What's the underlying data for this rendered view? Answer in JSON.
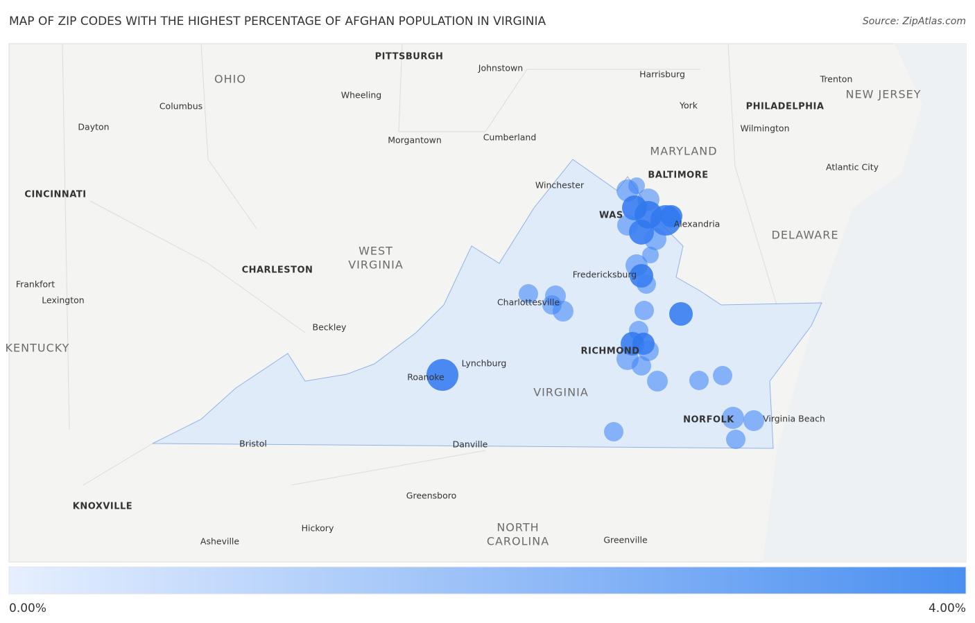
{
  "title": "MAP OF ZIP CODES WITH THE HIGHEST PERCENTAGE OF AFGHAN POPULATION IN VIRGINIA",
  "source": "Source: ZipAtlas.com",
  "map_labels": [
    "PITTSBURGH",
    "Johnstown",
    "OHIO",
    "Harrisburg",
    "Trenton",
    "NEW JERSEY",
    "Wheeling",
    "Columbus",
    "York",
    "PHILADELPHIA",
    "Dayton",
    "Wilmington",
    "Cumberland",
    "Morgantown",
    "MARYLAND",
    "BALTIMORE",
    "Atlantic City",
    "Winchester",
    "CINCINNATI",
    "WAS",
    "Alexandria",
    "DELAWARE",
    "WEST",
    "VIRGINIA",
    "CHARLESTON",
    "Fredericksburg",
    "Frankfort",
    "Charlottesville",
    "Lexington",
    "Beckley",
    "KENTUCKY",
    "RICHMOND",
    "Lynchburg",
    "Roanoke",
    "VIRGINIA",
    "NORFOLK",
    "Virginia Beach",
    "Bristol",
    "Danville",
    "Greensboro",
    "KNOXVILLE",
    "NORTH",
    "CAROLINA",
    "Hickory",
    "Asheville",
    "Greenville"
  ],
  "legend": {
    "min_label": "0.00%",
    "max_label": "4.00%"
  }
}
